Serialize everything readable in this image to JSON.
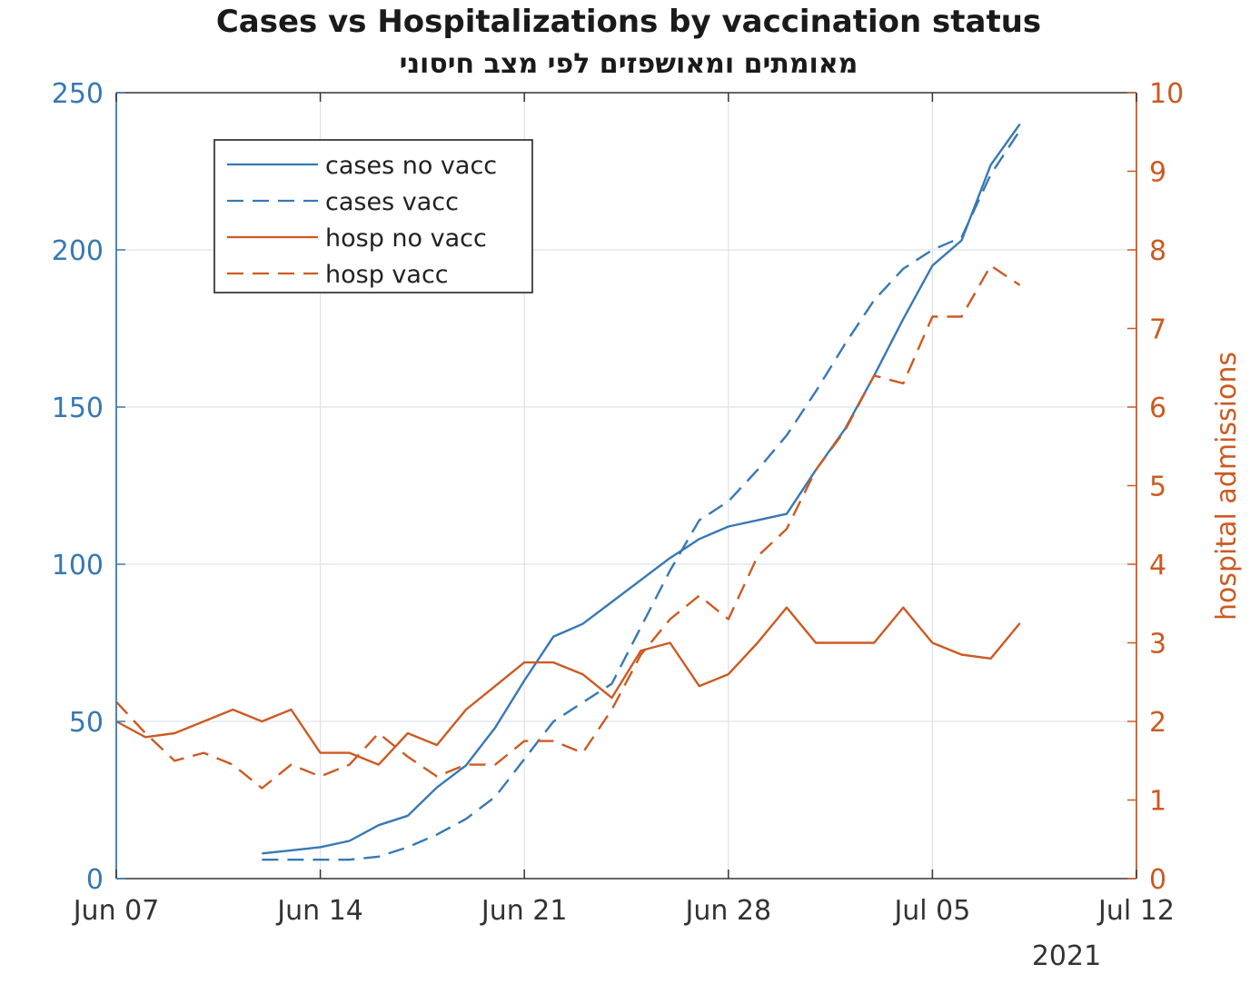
{
  "chart_data": {
    "type": "line",
    "title": "Cases vs Hospitalizations by vaccination status",
    "subtitle": "מאומתים ומאושפזים לפי מצב חיסוני",
    "xlabel": "",
    "x_year_label": "2021",
    "x_range": [
      "2021-06-07",
      "2021-07-12"
    ],
    "x_ticks": [
      "Jun 07",
      "Jun 14",
      "Jun 21",
      "Jun 28",
      "Jul 05",
      "Jul 12"
    ],
    "y_left": {
      "label": "",
      "lim": [
        0,
        250
      ],
      "ticks": [
        0,
        50,
        100,
        150,
        200,
        250
      ],
      "color": "#3778b4"
    },
    "y_right": {
      "label": "hospital admissions",
      "lim": [
        0,
        10
      ],
      "ticks": [
        0,
        1,
        2,
        3,
        4,
        5,
        6,
        7,
        8,
        9,
        10
      ],
      "color": "#cc5a22"
    },
    "grid": true,
    "legend_position": "top-left",
    "series": [
      {
        "name": "cases no vacc",
        "axis": "left",
        "style": "solid",
        "color": "#3778b4",
        "x": [
          "2021-06-12",
          "2021-06-13",
          "2021-06-14",
          "2021-06-15",
          "2021-06-16",
          "2021-06-17",
          "2021-06-18",
          "2021-06-19",
          "2021-06-20",
          "2021-06-21",
          "2021-06-22",
          "2021-06-23",
          "2021-06-24",
          "2021-06-25",
          "2021-06-26",
          "2021-06-27",
          "2021-06-28",
          "2021-06-29",
          "2021-06-30",
          "2021-07-01",
          "2021-07-02",
          "2021-07-03",
          "2021-07-04",
          "2021-07-05",
          "2021-07-06",
          "2021-07-07",
          "2021-07-08"
        ],
        "values": [
          8,
          9,
          10,
          12,
          17,
          20,
          29,
          36,
          48,
          63,
          77,
          81,
          88,
          95,
          102,
          108,
          112,
          114,
          116,
          130,
          143,
          160,
          178,
          195,
          203,
          227,
          240
        ]
      },
      {
        "name": "cases vacc",
        "axis": "left",
        "style": "dashed",
        "color": "#3778b4",
        "x": [
          "2021-06-12",
          "2021-06-13",
          "2021-06-14",
          "2021-06-15",
          "2021-06-16",
          "2021-06-17",
          "2021-06-18",
          "2021-06-19",
          "2021-06-20",
          "2021-06-21",
          "2021-06-22",
          "2021-06-23",
          "2021-06-24",
          "2021-06-25",
          "2021-06-26",
          "2021-06-27",
          "2021-06-28",
          "2021-06-29",
          "2021-06-30",
          "2021-07-01",
          "2021-07-02",
          "2021-07-03",
          "2021-07-04",
          "2021-07-05",
          "2021-07-06",
          "2021-07-07",
          "2021-07-08"
        ],
        "values": [
          6,
          6,
          6,
          6,
          7,
          10,
          14,
          19,
          26,
          38,
          50,
          56,
          62,
          80,
          98,
          114,
          120,
          130,
          141,
          155,
          170,
          184,
          194,
          200,
          204,
          224,
          238
        ]
      },
      {
        "name": "hosp no vacc",
        "axis": "right",
        "style": "solid",
        "color": "#cc5a22",
        "x": [
          "2021-06-07",
          "2021-06-08",
          "2021-06-09",
          "2021-06-10",
          "2021-06-11",
          "2021-06-12",
          "2021-06-13",
          "2021-06-14",
          "2021-06-15",
          "2021-06-16",
          "2021-06-17",
          "2021-06-18",
          "2021-06-19",
          "2021-06-20",
          "2021-06-21",
          "2021-06-22",
          "2021-06-23",
          "2021-06-24",
          "2021-06-25",
          "2021-06-26",
          "2021-06-27",
          "2021-06-28",
          "2021-06-29",
          "2021-06-30",
          "2021-07-01",
          "2021-07-02",
          "2021-07-03",
          "2021-07-04",
          "2021-07-05",
          "2021-07-06",
          "2021-07-07",
          "2021-07-08"
        ],
        "values": [
          2.0,
          1.8,
          1.85,
          2.0,
          2.15,
          2.0,
          2.15,
          1.6,
          1.6,
          1.45,
          1.85,
          1.7,
          2.15,
          2.45,
          2.75,
          2.75,
          2.6,
          2.3,
          2.9,
          3.0,
          2.45,
          2.6,
          3.0,
          3.45,
          3.0,
          3.0,
          3.0,
          3.45,
          3.0,
          2.85,
          2.8,
          3.25
        ]
      },
      {
        "name": "hosp vacc",
        "axis": "right",
        "style": "dashed",
        "color": "#cc5a22",
        "x": [
          "2021-06-07",
          "2021-06-08",
          "2021-06-09",
          "2021-06-10",
          "2021-06-11",
          "2021-06-12",
          "2021-06-13",
          "2021-06-14",
          "2021-06-15",
          "2021-06-16",
          "2021-06-17",
          "2021-06-18",
          "2021-06-19",
          "2021-06-20",
          "2021-06-21",
          "2021-06-22",
          "2021-06-23",
          "2021-06-24",
          "2021-06-25",
          "2021-06-26",
          "2021-06-27",
          "2021-06-28",
          "2021-06-29",
          "2021-06-30",
          "2021-07-01",
          "2021-07-02",
          "2021-07-03",
          "2021-07-04",
          "2021-07-05",
          "2021-07-06",
          "2021-07-07",
          "2021-07-08"
        ],
        "values": [
          2.25,
          1.85,
          1.5,
          1.6,
          1.45,
          1.15,
          1.45,
          1.3,
          1.45,
          1.85,
          1.55,
          1.3,
          1.45,
          1.45,
          1.75,
          1.75,
          1.6,
          2.15,
          2.85,
          3.3,
          3.6,
          3.3,
          4.1,
          4.45,
          5.2,
          5.7,
          6.4,
          6.3,
          7.15,
          7.15,
          7.8,
          7.55
        ]
      }
    ]
  }
}
